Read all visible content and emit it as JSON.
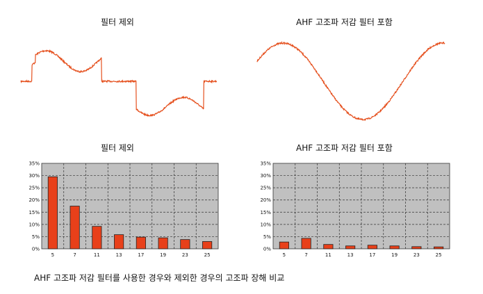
{
  "titles": {
    "top_left": "필터 제외",
    "top_right": "AHF 고조파 저감 필터 포함",
    "bottom_left": "필터 제외",
    "bottom_right": "AHF 고조파 저감 필터 포함"
  },
  "caption": "AHF 고조파 저감 필터를 사용한 경우와 제외한 경우의 고조파 장해 비교",
  "colors": {
    "waveform": "#e5501e",
    "bar_fill": "#e8401a",
    "plot_bg": "#c0c0c0"
  },
  "chart_data": [
    {
      "type": "bar",
      "title": "필터 제외",
      "categories": [
        "5",
        "7",
        "11",
        "13",
        "17",
        "19",
        "23",
        "25"
      ],
      "values": [
        29.5,
        17.5,
        9.2,
        5.8,
        4.8,
        4.5,
        3.8,
        3.0
      ],
      "yticks": [
        "0%",
        "5%",
        "10%",
        "15%",
        "20%",
        "25%",
        "30%",
        "35%"
      ],
      "ylim": [
        0,
        35
      ],
      "grid": true
    },
    {
      "type": "bar",
      "title": "AHF 고조파 저감 필터 포함",
      "categories": [
        "5",
        "7",
        "11",
        "13",
        "17",
        "19",
        "23",
        "25"
      ],
      "values": [
        2.8,
        4.3,
        1.8,
        1.2,
        1.5,
        1.2,
        0.9,
        0.8
      ],
      "yticks": [
        "0%",
        "5%",
        "10%",
        "15%",
        "20%",
        "25%",
        "30%",
        "35%"
      ],
      "ylim": [
        0,
        35
      ],
      "grid": true
    }
  ]
}
